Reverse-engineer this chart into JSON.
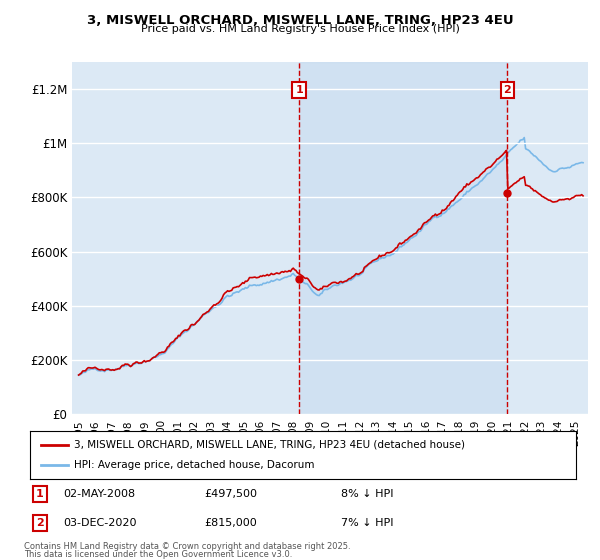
{
  "title": "3, MISWELL ORCHARD, MISWELL LANE, TRING, HP23 4EU",
  "subtitle": "Price paid vs. HM Land Registry's House Price Index (HPI)",
  "ylabel_ticks": [
    "£0",
    "£200K",
    "£400K",
    "£600K",
    "£800K",
    "£1M",
    "£1.2M"
  ],
  "ytick_vals": [
    0,
    200000,
    400000,
    600000,
    800000,
    1000000,
    1200000
  ],
  "ylim": [
    0,
    1300000
  ],
  "xlim_start": 1994.6,
  "xlim_end": 2025.8,
  "sale1": {
    "date": "02-MAY-2008",
    "price": 497500,
    "year": 2008.33,
    "label": "1",
    "pct": "8% ↓ HPI"
  },
  "sale2": {
    "date": "03-DEC-2020",
    "price": 815000,
    "year": 2020.92,
    "label": "2",
    "pct": "7% ↓ HPI"
  },
  "hpi_color": "#7ab8e8",
  "price_color": "#cc0000",
  "legend_line1": "3, MISWELL ORCHARD, MISWELL LANE, TRING, HP23 4EU (detached house)",
  "legend_line2": "HPI: Average price, detached house, Dacorum",
  "footer1": "Contains HM Land Registry data © Crown copyright and database right 2025.",
  "footer2": "This data is licensed under the Open Government Licence v3.0.",
  "fig_bg_color": "#f0f0f0",
  "plot_bg_color": "#dce9f5",
  "shade_color": "#c5dbf0",
  "grid_color": "#ffffff",
  "vline_color": "#cc0000",
  "n_points": 370
}
